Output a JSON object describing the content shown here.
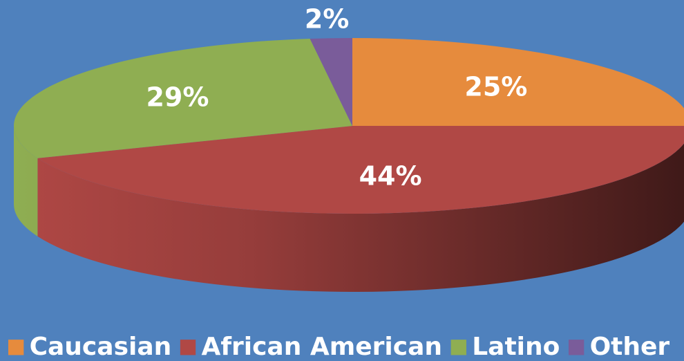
{
  "chart_data": {
    "type": "pie",
    "categories": [
      "Caucasian",
      "African American",
      "Latino",
      "Other"
    ],
    "values": [
      25,
      44,
      29,
      2
    ],
    "value_labels": [
      "25%",
      "44%",
      "29%",
      "2%"
    ],
    "colors": [
      "#e68b3d",
      "#b04845",
      "#8fae52",
      "#7a5c9a"
    ],
    "legend": "bottom"
  }
}
